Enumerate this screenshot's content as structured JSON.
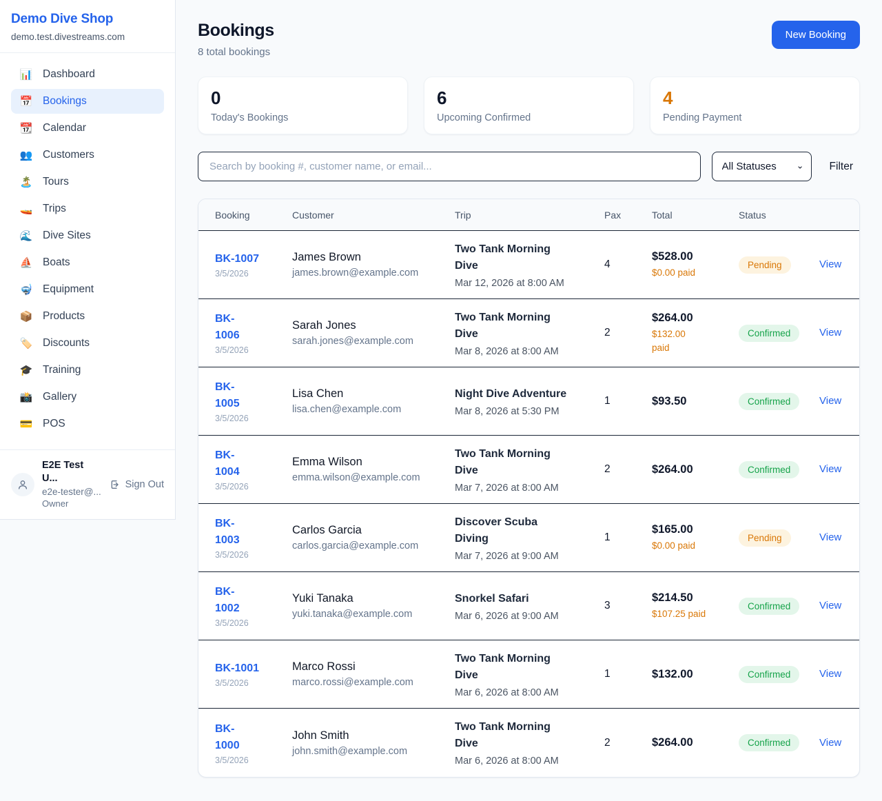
{
  "sidebar": {
    "brand": {
      "name": "Demo Dive Shop",
      "domain": "demo.test.divestreams.com"
    },
    "nav": [
      {
        "key": "dashboard",
        "icon": "bar-chart-icon",
        "glyph": "📊",
        "label": "Dashboard",
        "active": false
      },
      {
        "key": "bookings",
        "icon": "calendar-icon",
        "glyph": "📅",
        "label": "Bookings",
        "active": true
      },
      {
        "key": "calendar",
        "icon": "tearoff-calendar-icon",
        "glyph": "📆",
        "label": "Calendar",
        "active": false
      },
      {
        "key": "customers",
        "icon": "people-icon",
        "glyph": "👥",
        "label": "Customers",
        "active": false
      },
      {
        "key": "tours",
        "icon": "island-icon",
        "glyph": "🏝️",
        "label": "Tours",
        "active": false
      },
      {
        "key": "trips",
        "icon": "speedboat-icon",
        "glyph": "🚤",
        "label": "Trips",
        "active": false
      },
      {
        "key": "dive-sites",
        "icon": "wave-icon",
        "glyph": "🌊",
        "label": "Dive Sites",
        "active": false
      },
      {
        "key": "boats",
        "icon": "sailboat-icon",
        "glyph": "⛵",
        "label": "Boats",
        "active": false
      },
      {
        "key": "equipment",
        "icon": "diving-mask-icon",
        "glyph": "🤿",
        "label": "Equipment",
        "active": false
      },
      {
        "key": "products",
        "icon": "package-icon",
        "glyph": "📦",
        "label": "Products",
        "active": false
      },
      {
        "key": "discounts",
        "icon": "label-tag-icon",
        "glyph": "🏷️",
        "label": "Discounts",
        "active": false
      },
      {
        "key": "training",
        "icon": "graduation-cap-icon",
        "glyph": "🎓",
        "label": "Training",
        "active": false
      },
      {
        "key": "gallery",
        "icon": "camera-icon",
        "glyph": "📸",
        "label": "Gallery",
        "active": false
      },
      {
        "key": "pos",
        "icon": "credit-card-icon",
        "glyph": "💳",
        "label": "POS",
        "active": false
      }
    ],
    "user": {
      "name": "E2E Test U...",
      "email": "e2e-tester@...",
      "role": "Owner",
      "sign_out_label": "Sign Out"
    }
  },
  "header": {
    "title": "Bookings",
    "subtitle": "8 total bookings",
    "new_booking_label": "New Booking"
  },
  "stats": [
    {
      "value": "0",
      "label": "Today's Bookings",
      "color": "dark"
    },
    {
      "value": "6",
      "label": "Upcoming Confirmed",
      "color": "dark"
    },
    {
      "value": "4",
      "label": "Pending Payment",
      "color": "orange"
    }
  ],
  "filters": {
    "search_placeholder": "Search by booking #, customer name, or email...",
    "status_selected": "All Statuses",
    "filter_label": "Filter"
  },
  "table": {
    "columns": [
      "Booking",
      "Customer",
      "Trip",
      "Pax",
      "Total",
      "Status"
    ],
    "rows": [
      {
        "id": "BK-1007",
        "date": "3/5/2026",
        "customer": "James Brown",
        "email": "james.brown@example.com",
        "trip": "Two Tank Morning\nDive",
        "trip_date": "Mar 12, 2026 at 8:00 AM",
        "pax": "4",
        "total": "$528.00",
        "paid": "$0.00 paid",
        "status": "Pending",
        "action": "View"
      },
      {
        "id": "BK-\n1006",
        "date": "3/5/2026",
        "customer": "Sarah Jones",
        "email": "sarah.jones@example.com",
        "trip": "Two Tank Morning\nDive",
        "trip_date": "Mar 8, 2026 at 8:00 AM",
        "pax": "2",
        "total": "$264.00",
        "paid": "$132.00\npaid",
        "status": "Confirmed",
        "action": "View"
      },
      {
        "id": "BK-\n1005",
        "date": "3/5/2026",
        "customer": "Lisa Chen",
        "email": "lisa.chen@example.com",
        "trip": "Night Dive Adventure",
        "trip_date": "Mar 8, 2026 at 5:30 PM",
        "pax": "1",
        "total": "$93.50",
        "paid": "",
        "status": "Confirmed",
        "action": "View"
      },
      {
        "id": "BK-\n1004",
        "date": "3/5/2026",
        "customer": "Emma Wilson",
        "email": "emma.wilson@example.com",
        "trip": "Two Tank Morning\nDive",
        "trip_date": "Mar 7, 2026 at 8:00 AM",
        "pax": "2",
        "total": "$264.00",
        "paid": "",
        "status": "Confirmed",
        "action": "View"
      },
      {
        "id": "BK-\n1003",
        "date": "3/5/2026",
        "customer": "Carlos Garcia",
        "email": "carlos.garcia@example.com",
        "trip": "Discover Scuba\nDiving",
        "trip_date": "Mar 7, 2026 at 9:00 AM",
        "pax": "1",
        "total": "$165.00",
        "paid": "$0.00 paid",
        "status": "Pending",
        "action": "View"
      },
      {
        "id": "BK-\n1002",
        "date": "3/5/2026",
        "customer": "Yuki Tanaka",
        "email": "yuki.tanaka@example.com",
        "trip": "Snorkel Safari",
        "trip_date": "Mar 6, 2026 at 9:00 AM",
        "pax": "3",
        "total": "$214.50",
        "paid": "$107.25 paid",
        "status": "Confirmed",
        "action": "View"
      },
      {
        "id": "BK-1001",
        "date": "3/5/2026",
        "customer": "Marco Rossi",
        "email": "marco.rossi@example.com",
        "trip": "Two Tank Morning\nDive",
        "trip_date": "Mar 6, 2026 at 8:00 AM",
        "pax": "1",
        "total": "$132.00",
        "paid": "",
        "status": "Confirmed",
        "action": "View"
      },
      {
        "id": "BK-\n1000",
        "date": "3/5/2026",
        "customer": "John Smith",
        "email": "john.smith@example.com",
        "trip": "Two Tank Morning\nDive",
        "trip_date": "Mar 6, 2026 at 8:00 AM",
        "pax": "2",
        "total": "$264.00",
        "paid": "",
        "status": "Confirmed",
        "action": "View"
      }
    ]
  },
  "colors": {
    "accent_blue": "#2563eb",
    "orange": "#d97706",
    "green": "#16a34a",
    "pending_badge_bg": "#fdf3df",
    "confirmed_badge_bg": "#e3f6ea",
    "page_bg": "#f8fafc"
  }
}
